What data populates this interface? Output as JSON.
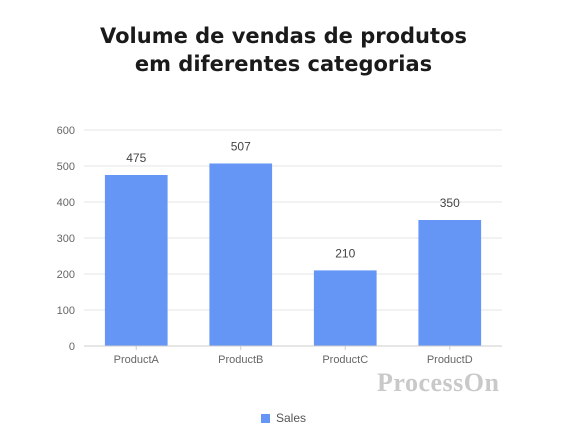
{
  "chart_data": {
    "type": "bar",
    "title": [
      "Volume de vendas de produtos",
      "em diferentes categorias"
    ],
    "categories": [
      "ProductA",
      "ProductB",
      "ProductC",
      "ProductD"
    ],
    "series": [
      {
        "name": "Sales",
        "values": [
          475,
          507,
          210,
          350
        ]
      }
    ],
    "ylim": [
      0,
      600
    ],
    "yticks": [
      0,
      100,
      200,
      300,
      400,
      500,
      600
    ],
    "grid": true,
    "data_labels": true,
    "legend_position": "bottom-center",
    "bar_color": "#6595f5",
    "grid_color": "#e6e6e6",
    "axis_color": "#cccccc",
    "tick_label_color": "#666666",
    "data_label_color": "#444444"
  },
  "watermark": {
    "text": "ProcessOn",
    "color": "#c9c9c9"
  }
}
